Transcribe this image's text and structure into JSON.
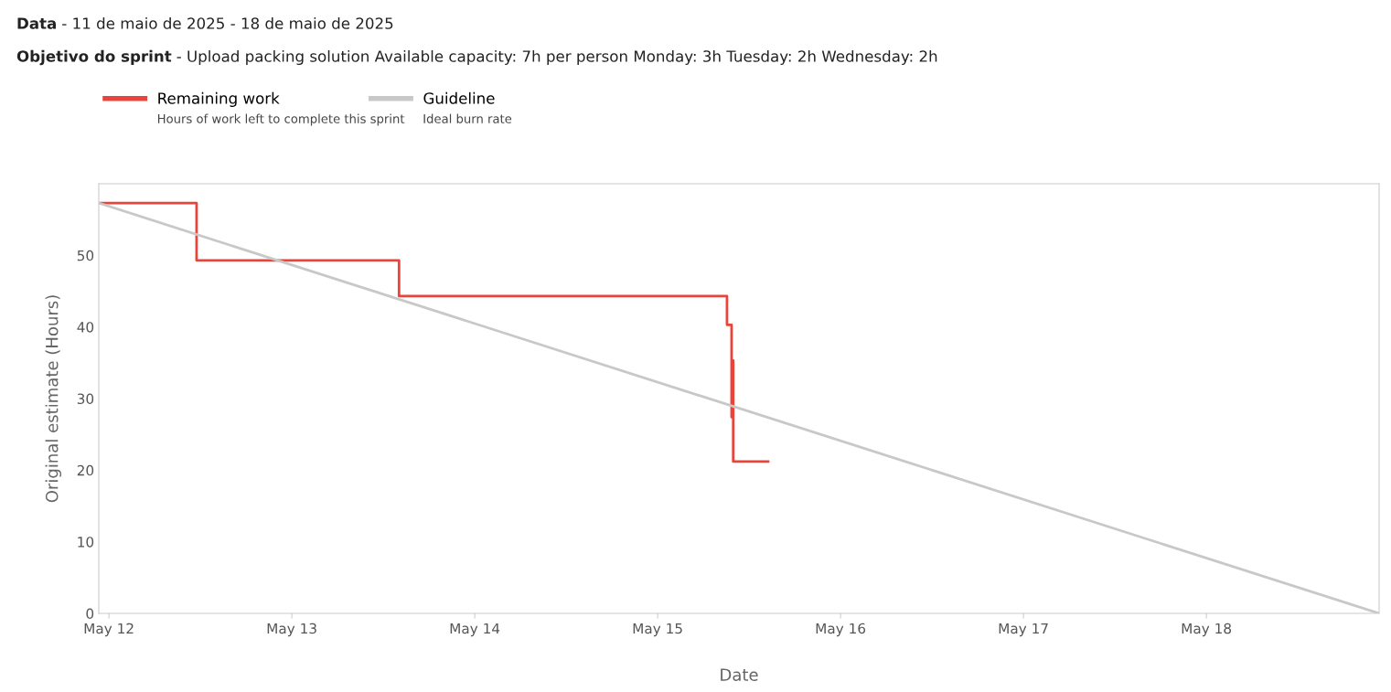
{
  "chart_data": {
    "type": "step",
    "title": "Data - 11 de maio de 2025 - 18 de maio de 2025",
    "subtitle": "Objetivo do sprint - Upload packing solution Available capacity: 7h per person Monday: 3h Tuesday: 2h Wednesday: 2h",
    "xlabel": "Date",
    "ylabel": "Original estimate (Hours)",
    "series": [
      {
        "name": "Remaining work",
        "color": "#e8443a",
        "x": [
          "2025-05-11T22:40",
          "2025-05-12T11:30",
          "2025-05-13T14:04",
          "2025-05-15T09:06",
          "2025-05-15T09:42",
          "2025-05-15T09:50",
          "2025-05-15T09:55",
          "2025-05-15T14:30"
        ],
        "values": [
          57.3,
          49.3,
          44.3,
          40.3,
          27.4,
          35.3,
          21.2,
          21.2
        ]
      },
      {
        "name": "Guideline",
        "type": "line",
        "color": "#c8c8c8",
        "x": [
          "2025-05-11T22:40",
          "2025-05-18T22:40"
        ],
        "values": [
          57.3,
          0
        ]
      }
    ],
    "annotations": [
      "Hours of work left to complete this sprint",
      "Ideal burn rate"
    ],
    "xlim": [
      "2025-05-11T22:40",
      "2025-05-18T22:40"
    ],
    "xticks": [
      {
        "value": "2025-05-12",
        "label": "May 12"
      },
      {
        "value": "2025-05-13",
        "label": "May 13"
      },
      {
        "value": "2025-05-14",
        "label": "May 14"
      },
      {
        "value": "2025-05-15",
        "label": "May 15"
      },
      {
        "value": "2025-05-16",
        "label": "May 16"
      },
      {
        "value": "2025-05-17",
        "label": "May 17"
      },
      {
        "value": "2025-05-18",
        "label": "May 18"
      }
    ],
    "ylim": [
      0,
      60
    ],
    "yticks": [
      0,
      10,
      20,
      30,
      40,
      50
    ],
    "grid": false,
    "legend": "top left"
  }
}
